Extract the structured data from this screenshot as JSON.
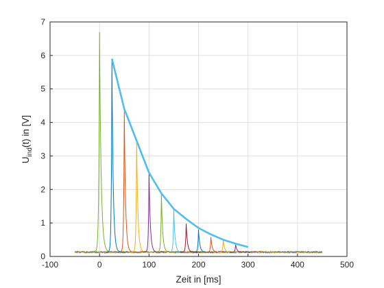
{
  "chart_data": {
    "type": "line",
    "xlabel": "Zeit in [ms]",
    "ylabel": {
      "main": "U",
      "sub": "ind",
      "rest": "(t) in [V]"
    },
    "xlim": [
      -100,
      500
    ],
    "ylim": [
      0,
      7
    ],
    "xticks": [
      -100,
      0,
      100,
      200,
      300,
      400,
      500
    ],
    "yticks": [
      0,
      1,
      2,
      3,
      4,
      5,
      6,
      7
    ],
    "grid": true,
    "baseline_range": [
      -50,
      450
    ],
    "baseline_level": 0.13,
    "pulses": [
      {
        "t": 0,
        "peak": 6.7,
        "color": "#77AC30"
      },
      {
        "t": 25,
        "peak": 5.9,
        "color": "#0072BD"
      },
      {
        "t": 50,
        "peak": 4.4,
        "color": "#D95319"
      },
      {
        "t": 75,
        "peak": 3.45,
        "color": "#EDB120"
      },
      {
        "t": 100,
        "peak": 2.5,
        "color": "#7E2F8E"
      },
      {
        "t": 125,
        "peak": 1.88,
        "color": "#77AC30"
      },
      {
        "t": 150,
        "peak": 1.4,
        "color": "#4DBEEE"
      },
      {
        "t": 175,
        "peak": 0.98,
        "color": "#A2142F"
      },
      {
        "t": 200,
        "peak": 0.8,
        "color": "#0072BD"
      },
      {
        "t": 225,
        "peak": 0.58,
        "color": "#D95319"
      },
      {
        "t": 250,
        "peak": 0.5,
        "color": "#EDB120"
      },
      {
        "t": 275,
        "peak": 0.35,
        "color": "#7E2F8E"
      }
    ],
    "envelope": {
      "color": "#4DBEEE",
      "x": [
        25,
        50,
        75,
        100,
        125,
        150,
        175,
        200,
        225,
        250,
        275,
        300
      ],
      "y": [
        5.9,
        4.4,
        3.45,
        2.5,
        1.88,
        1.42,
        1.12,
        0.85,
        0.66,
        0.5,
        0.38,
        0.28
      ]
    }
  }
}
